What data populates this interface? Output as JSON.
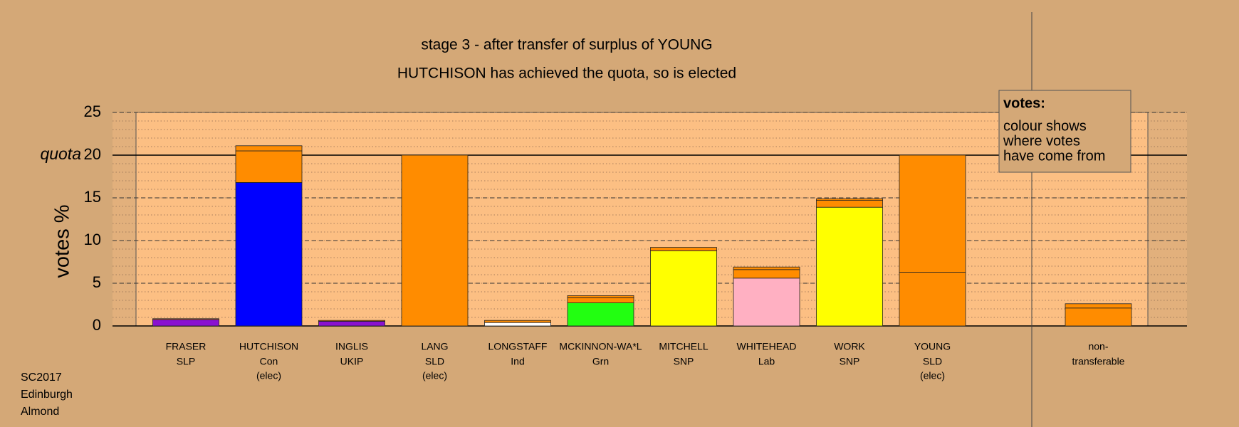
{
  "chart_data": {
    "type": "bar",
    "stacked": true,
    "title": "stage 3 - after transfer of surplus of YOUNG",
    "subtitle": "HUTCHISON has achieved the quota, so is elected",
    "y_label": "votes %",
    "categories": [
      "FRASER",
      "HUTCHISON",
      "INGLIS",
      "LANG",
      "LONGSTAFF",
      "MCKINNON-WA*L",
      "MITCHELL",
      "WHITEHEAD",
      "WORK",
      "YOUNG",
      "non-"
    ],
    "parties": [
      "SLP",
      "Con",
      "UKIP",
      "SLD",
      "Ind",
      "Grn",
      "SNP",
      "Lab",
      "SNP",
      "SLD",
      "transferable"
    ],
    "notes": [
      null,
      "(elec)",
      null,
      "(elec)",
      null,
      null,
      null,
      null,
      null,
      "(elec)",
      null
    ],
    "series": [
      {
        "colors": [
          "#8a10d0",
          "#0000ff",
          "#8a10d0",
          "#ff8c00",
          "#ffffff",
          "#22ff11",
          "#ffff00",
          "#ffb0c2",
          "#ffff00",
          "#ff8c00",
          "#ff8c00"
        ],
        "values": [
          0.75,
          16.8,
          0.55,
          20,
          0.4,
          2.7,
          8.8,
          5.6,
          13.9,
          6.3,
          2.1
        ]
      },
      {
        "color": "#ff8c00",
        "values": [
          0.1,
          3.7,
          0.1,
          null,
          0.25,
          0.6,
          0.4,
          1.0,
          0.8,
          13.7,
          0.5
        ]
      },
      {
        "color": "#ff8c00",
        "values": [
          null,
          0.6,
          null,
          null,
          null,
          0.25,
          null,
          0.3,
          0.2,
          null,
          null
        ]
      }
    ],
    "ylim": [
      0,
      25
    ],
    "yticks": [
      0,
      5,
      10,
      15,
      20,
      25
    ],
    "minor_grid_step": 1,
    "quota": {
      "value": 20,
      "label": "quota"
    },
    "legend": {
      "title": "votes:",
      "lines": [
        "colour shows",
        "where votes",
        "have come from"
      ]
    },
    "footnote": [
      "SC2017",
      "Edinburgh",
      "Almond"
    ]
  }
}
